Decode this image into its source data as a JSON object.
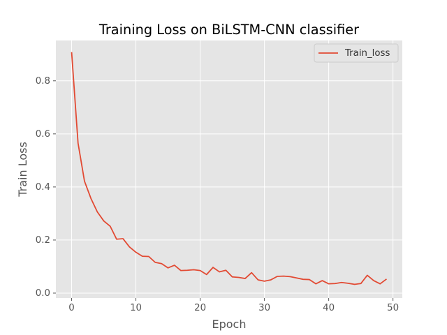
{
  "chart_data": {
    "type": "line",
    "title": "Training Loss on BiLSTM-CNN classifier",
    "xlabel": "Epoch",
    "ylabel": "Train Loss",
    "xlim": [
      -2.45,
      51.45
    ],
    "ylim": [
      -0.0185,
      0.952
    ],
    "xticks": [
      0,
      10,
      20,
      30,
      40,
      50
    ],
    "yticks": [
      0.0,
      0.2,
      0.4,
      0.6,
      0.8
    ],
    "ytick_labels": [
      "0.0",
      "0.2",
      "0.4",
      "0.6",
      "0.8"
    ],
    "grid": true,
    "legend_position": "top-right",
    "style": "ggplot",
    "series": [
      {
        "name": "Train_loss",
        "color": "#E24A33",
        "x": [
          0,
          1,
          2,
          3,
          4,
          5,
          6,
          7,
          8,
          9,
          10,
          11,
          12,
          13,
          14,
          15,
          16,
          17,
          18,
          19,
          20,
          21,
          22,
          23,
          24,
          25,
          26,
          27,
          28,
          29,
          30,
          31,
          32,
          33,
          34,
          35,
          36,
          37,
          38,
          39,
          40,
          41,
          42,
          43,
          44,
          45,
          46,
          47,
          48,
          49
        ],
        "values": [
          0.908,
          0.565,
          0.422,
          0.357,
          0.306,
          0.272,
          0.252,
          0.203,
          0.205,
          0.174,
          0.154,
          0.139,
          0.138,
          0.116,
          0.111,
          0.095,
          0.105,
          0.085,
          0.086,
          0.088,
          0.085,
          0.07,
          0.097,
          0.08,
          0.086,
          0.061,
          0.059,
          0.055,
          0.077,
          0.05,
          0.045,
          0.05,
          0.063,
          0.064,
          0.062,
          0.057,
          0.052,
          0.051,
          0.035,
          0.047,
          0.035,
          0.036,
          0.04,
          0.037,
          0.033,
          0.036,
          0.067,
          0.047,
          0.035,
          0.053
        ]
      }
    ]
  }
}
